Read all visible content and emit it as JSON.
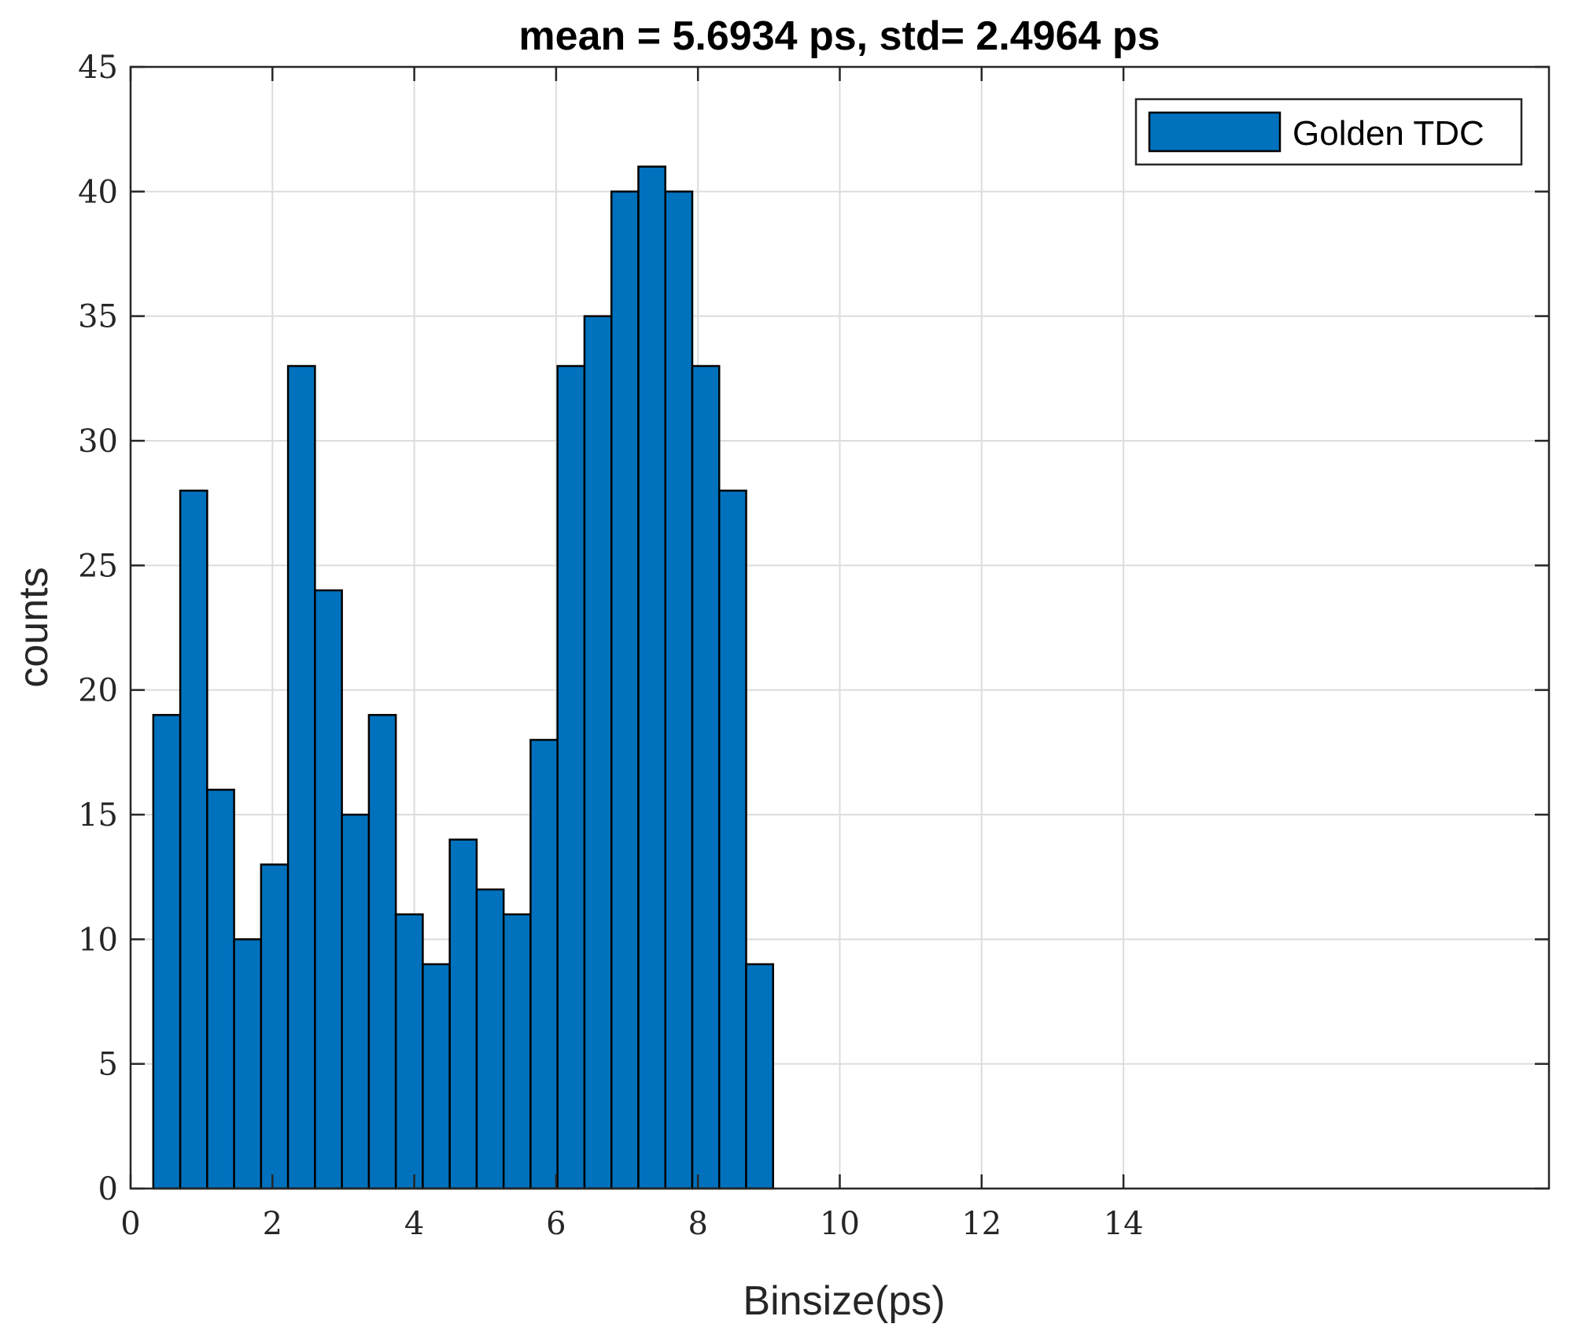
{
  "chart_data": {
    "type": "bar",
    "title": "mean = 5.6934 ps, std= 2.4964 ps",
    "xlabel": "Binsize(ps)",
    "ylabel": "counts",
    "xlim": [
      0,
      20
    ],
    "ylim": [
      0,
      45
    ],
    "xticks": [
      "0",
      "2",
      "4",
      "6",
      "8",
      "10",
      "12",
      "14"
    ],
    "yticks": [
      "0",
      "5",
      "10",
      "15",
      "20",
      "25",
      "30",
      "35",
      "40",
      "45"
    ],
    "grid": true,
    "legend": {
      "entries": [
        "Golden TDC"
      ],
      "position": "top-right"
    },
    "bar_color": "#0072bd",
    "bin_edges": [
      0.32,
      0.7,
      1.08,
      1.46,
      1.84,
      2.22,
      2.6,
      2.98,
      3.36,
      3.74,
      4.12,
      4.5,
      4.88,
      5.26,
      5.64,
      6.02,
      6.4,
      6.78,
      7.16,
      7.54,
      7.92,
      8.3,
      8.68,
      9.06
    ],
    "series": [
      {
        "name": "Golden TDC",
        "values": [
          19,
          28,
          16,
          10,
          13,
          33,
          24,
          15,
          19,
          11,
          9,
          14,
          12,
          11,
          18,
          33,
          35,
          40,
          41,
          40,
          33,
          28,
          9
        ]
      }
    ]
  }
}
